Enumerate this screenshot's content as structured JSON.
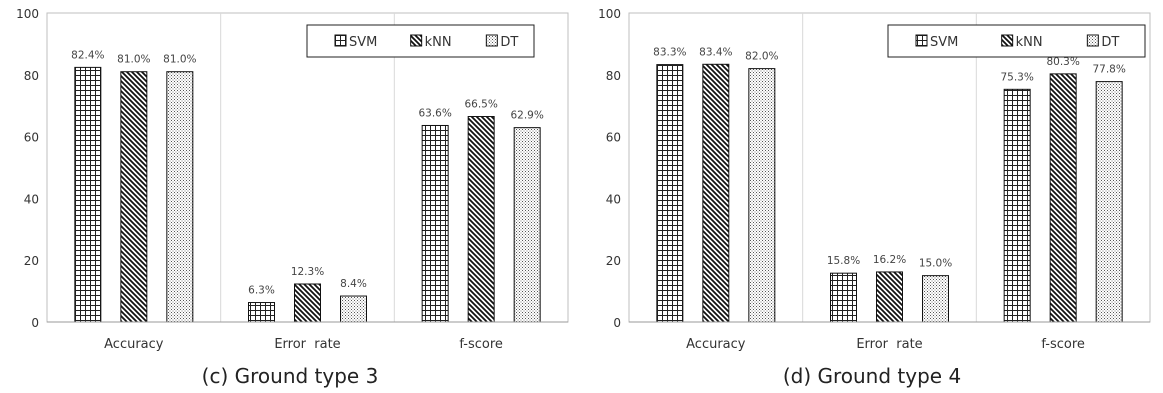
{
  "chart_data": [
    {
      "type": "bar",
      "caption": "(c) Ground type 3",
      "categories": [
        "Accuracy",
        "Error  rate",
        "f-score"
      ],
      "series": [
        {
          "name": "SVM",
          "values": [
            82.4,
            6.3,
            63.6
          ],
          "labels": [
            "82.4%",
            "6.3%",
            "63.6%"
          ],
          "pattern": "grid"
        },
        {
          "name": "kNN",
          "values": [
            81.0,
            12.3,
            66.5
          ],
          "labels": [
            "81.0%",
            "12.3%",
            "66.5%"
          ],
          "pattern": "diag"
        },
        {
          "name": "DT",
          "values": [
            81.0,
            8.4,
            62.9
          ],
          "labels": [
            "81.0%",
            "8.4%",
            "62.9%"
          ],
          "pattern": "dots"
        }
      ],
      "ylim": [
        0,
        100
      ],
      "yticks": [
        "0",
        "20",
        "40",
        "60",
        "80",
        "100"
      ],
      "legend": "top-right"
    },
    {
      "type": "bar",
      "caption": "(d) Ground type 4",
      "categories": [
        "Accuracy",
        "Error  rate",
        "f-score"
      ],
      "series": [
        {
          "name": "SVM",
          "values": [
            83.3,
            15.8,
            75.3
          ],
          "labels": [
            "83.3%",
            "15.8%",
            "75.3%"
          ],
          "pattern": "grid"
        },
        {
          "name": "kNN",
          "values": [
            83.4,
            16.2,
            80.3
          ],
          "labels": [
            "83.4%",
            "16.2%",
            "80.3%"
          ],
          "pattern": "diag"
        },
        {
          "name": "DT",
          "values": [
            82.0,
            15.0,
            77.8
          ],
          "labels": [
            "82.0%",
            "15.0%",
            "77.8%"
          ],
          "pattern": "dots"
        }
      ],
      "ylim": [
        0,
        100
      ],
      "yticks": [
        "0",
        "20",
        "40",
        "60",
        "80",
        "100"
      ],
      "legend": "top-right"
    }
  ]
}
